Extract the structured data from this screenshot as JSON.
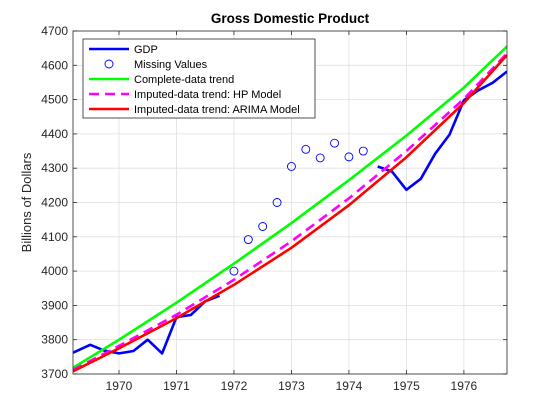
{
  "chart_data": {
    "type": "line",
    "title": "Gross Domestic Product",
    "xlabel": "",
    "ylabel": "Billions of Dollars",
    "xlim": [
      1969.2,
      1976.75
    ],
    "ylim": [
      3700,
      4700
    ],
    "xticks": [
      1970,
      1971,
      1972,
      1973,
      1974,
      1975,
      1976
    ],
    "yticks": [
      3700,
      3800,
      3900,
      4000,
      4100,
      4200,
      4300,
      4400,
      4500,
      4600,
      4700
    ],
    "grid": true,
    "legend_position": "top-left",
    "series": [
      {
        "name": "GDP",
        "kind": "line",
        "color": "#0000ff",
        "dash": "solid",
        "segments": [
          [
            [
              1969.2,
              3762
            ],
            [
              1969.5,
              3785
            ],
            [
              1969.75,
              3768
            ],
            [
              1970.0,
              3760
            ],
            [
              1970.25,
              3767
            ],
            [
              1970.5,
              3800
            ],
            [
              1970.75,
              3760
            ],
            [
              1971.0,
              3866
            ],
            [
              1971.25,
              3872
            ],
            [
              1971.5,
              3912
            ],
            [
              1971.75,
              3928
            ]
          ],
          [
            [
              1974.5,
              4305
            ],
            [
              1974.75,
              4290
            ],
            [
              1975.0,
              4237
            ],
            [
              1975.25,
              4269
            ],
            [
              1975.5,
              4342
            ],
            [
              1975.75,
              4398
            ],
            [
              1976.0,
              4498
            ],
            [
              1976.25,
              4527
            ],
            [
              1976.5,
              4549
            ],
            [
              1976.75,
              4582
            ]
          ]
        ]
      },
      {
        "name": "Missing Values",
        "kind": "markers",
        "color": "#0000ff",
        "x": [
          1972.0,
          1972.25,
          1972.5,
          1972.75,
          1973.0,
          1973.25,
          1973.5,
          1973.75,
          1974.0,
          1974.25
        ],
        "y": [
          4000,
          4092,
          4130,
          4200,
          4305,
          4355,
          4330,
          4373,
          4333,
          4350
        ]
      },
      {
        "name": "Complete-data trend",
        "kind": "line",
        "color": "#00ff00",
        "dash": "solid",
        "x": [
          1969.2,
          1970.0,
          1971.0,
          1972.0,
          1973.0,
          1974.0,
          1975.0,
          1976.0,
          1976.75
        ],
        "y": [
          3718,
          3800,
          3908,
          4022,
          4140,
          4265,
          4395,
          4535,
          4655
        ]
      },
      {
        "name": "Imputed-data trend: HP Model",
        "kind": "line",
        "color": "#ff00ff",
        "dash": "dashed",
        "x": [
          1969.2,
          1970.0,
          1971.0,
          1972.0,
          1973.0,
          1974.0,
          1975.0,
          1976.0,
          1976.75
        ],
        "y": [
          3712,
          3782,
          3873,
          3975,
          4087,
          4212,
          4350,
          4502,
          4635
        ]
      },
      {
        "name": "Imputed-data trend: ARIMA Model",
        "kind": "line",
        "color": "#ff0000",
        "dash": "solid",
        "x": [
          1969.2,
          1970.0,
          1971.0,
          1972.0,
          1973.0,
          1974.0,
          1975.0,
          1976.0,
          1976.75
        ],
        "y": [
          3708,
          3775,
          3863,
          3960,
          4068,
          4192,
          4332,
          4490,
          4630
        ]
      }
    ]
  }
}
